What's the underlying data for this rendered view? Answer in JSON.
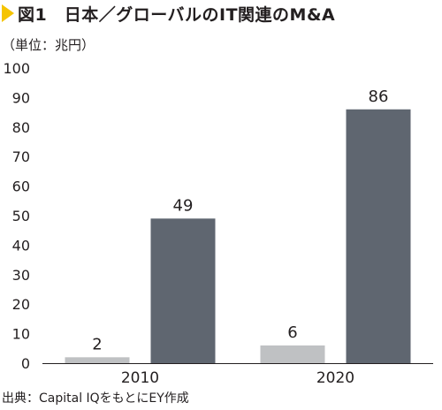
{
  "title": "図1　日本／グローバルのIT関連のM&A",
  "unit_label": "（単位：兆円）",
  "source": "出典：Capital IQをもとにEY作成",
  "colors": {
    "japan": "#bfc1c3",
    "global": "#5f6670",
    "axis": "#231f20",
    "title_marker": "#f5c400"
  },
  "chart_data": {
    "type": "bar",
    "categories": [
      "2010",
      "2020"
    ],
    "series": [
      {
        "values": [
          2,
          6
        ],
        "color_key": "japan"
      },
      {
        "values": [
          49,
          86
        ],
        "color_key": "global"
      }
    ],
    "ylim": [
      0,
      100
    ],
    "yticks": [
      0,
      10,
      20,
      30,
      40,
      50,
      60,
      70,
      80,
      90,
      100
    ],
    "xlabel": "",
    "ylabel": "（単位：兆円）",
    "grid": false,
    "legend": "none",
    "data_labels": true
  }
}
